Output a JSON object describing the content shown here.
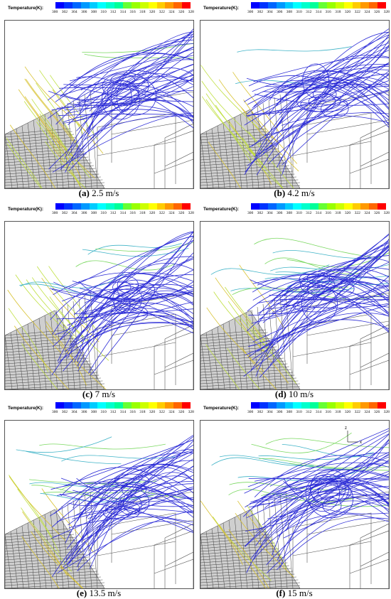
{
  "colors": {
    "scale": [
      "#0000ff",
      "#0033ff",
      "#0066ff",
      "#0099ff",
      "#00ccff",
      "#00ffff",
      "#00ffcc",
      "#00ff99",
      "#66ff33",
      "#99ff00",
      "#ccff00",
      "#ffff00",
      "#ffcc00",
      "#ff9900",
      "#ff6600",
      "#ff0000"
    ],
    "streamline_main": "#2b2bd6",
    "streamline_warm": "#d8c230",
    "streamline_mid": "#3fb3c7",
    "grid": "#555555"
  },
  "legend": {
    "title": "Temperature(K):",
    "ticks": [
      "300",
      "302",
      "304",
      "306",
      "308",
      "310",
      "312",
      "314",
      "316",
      "318",
      "320",
      "322",
      "324",
      "326",
      "328"
    ]
  },
  "panels": [
    {
      "label": "(a)",
      "speed": "2.5 m/s",
      "warm_level": 0.9,
      "mid_level": 0.1
    },
    {
      "label": "(b)",
      "speed": "4.2 m/s",
      "warm_level": 0.7,
      "mid_level": 0.1
    },
    {
      "label": "(c)",
      "speed": "7 m/s",
      "warm_level": 0.6,
      "mid_level": 0.3
    },
    {
      "label": "(d)",
      "speed": "10 m/s",
      "warm_level": 0.5,
      "mid_level": 0.6
    },
    {
      "label": "(e)",
      "speed": "13.5 m/s",
      "warm_level": 0.4,
      "mid_level": 0.5
    },
    {
      "label": "(f)",
      "speed": "15 m/s",
      "warm_level": 0.3,
      "mid_level": 0.6
    }
  ],
  "axis_labels": {
    "z": "z",
    "x": "x"
  }
}
